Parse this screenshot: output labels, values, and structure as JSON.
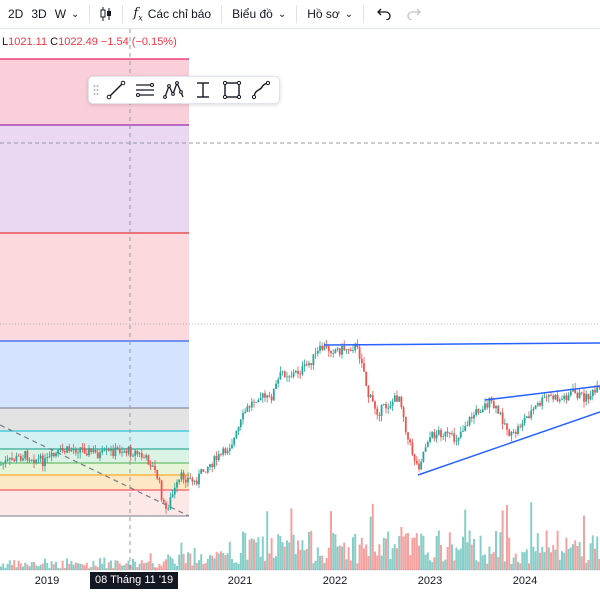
{
  "toolbar": {
    "interval_2d": "2D",
    "interval_3d": "3D",
    "interval_w": "W",
    "candle_icon": "candlestick-icon",
    "indicators_icon": "fx-icon",
    "indicators_label": "Các chỉ báo",
    "chart_type_label": "Biểu đồ",
    "profile_label": "Hồ sơ",
    "undo_icon": "undo-icon",
    "redo_icon": "redo-icon"
  },
  "legend": {
    "low_value": "1021.11",
    "close_label": "C",
    "close_value": "1022.49",
    "change": "−1.54 (−0.15%)"
  },
  "drawing_toolbar": {
    "tools": [
      "trend-line-icon",
      "parallel-channel-icon",
      "pattern-icon",
      "measure-icon",
      "rectangle-icon",
      "path-icon"
    ]
  },
  "time_axis": {
    "labels": [
      "2019",
      "2021",
      "2022",
      "2023",
      "2024"
    ],
    "crosshair_label": "08 Tháng 11 '19"
  },
  "colors": {
    "up": "#26a69a",
    "down": "#ef5350",
    "trendline": "#2962ff",
    "negative_text": "#f23645"
  }
}
